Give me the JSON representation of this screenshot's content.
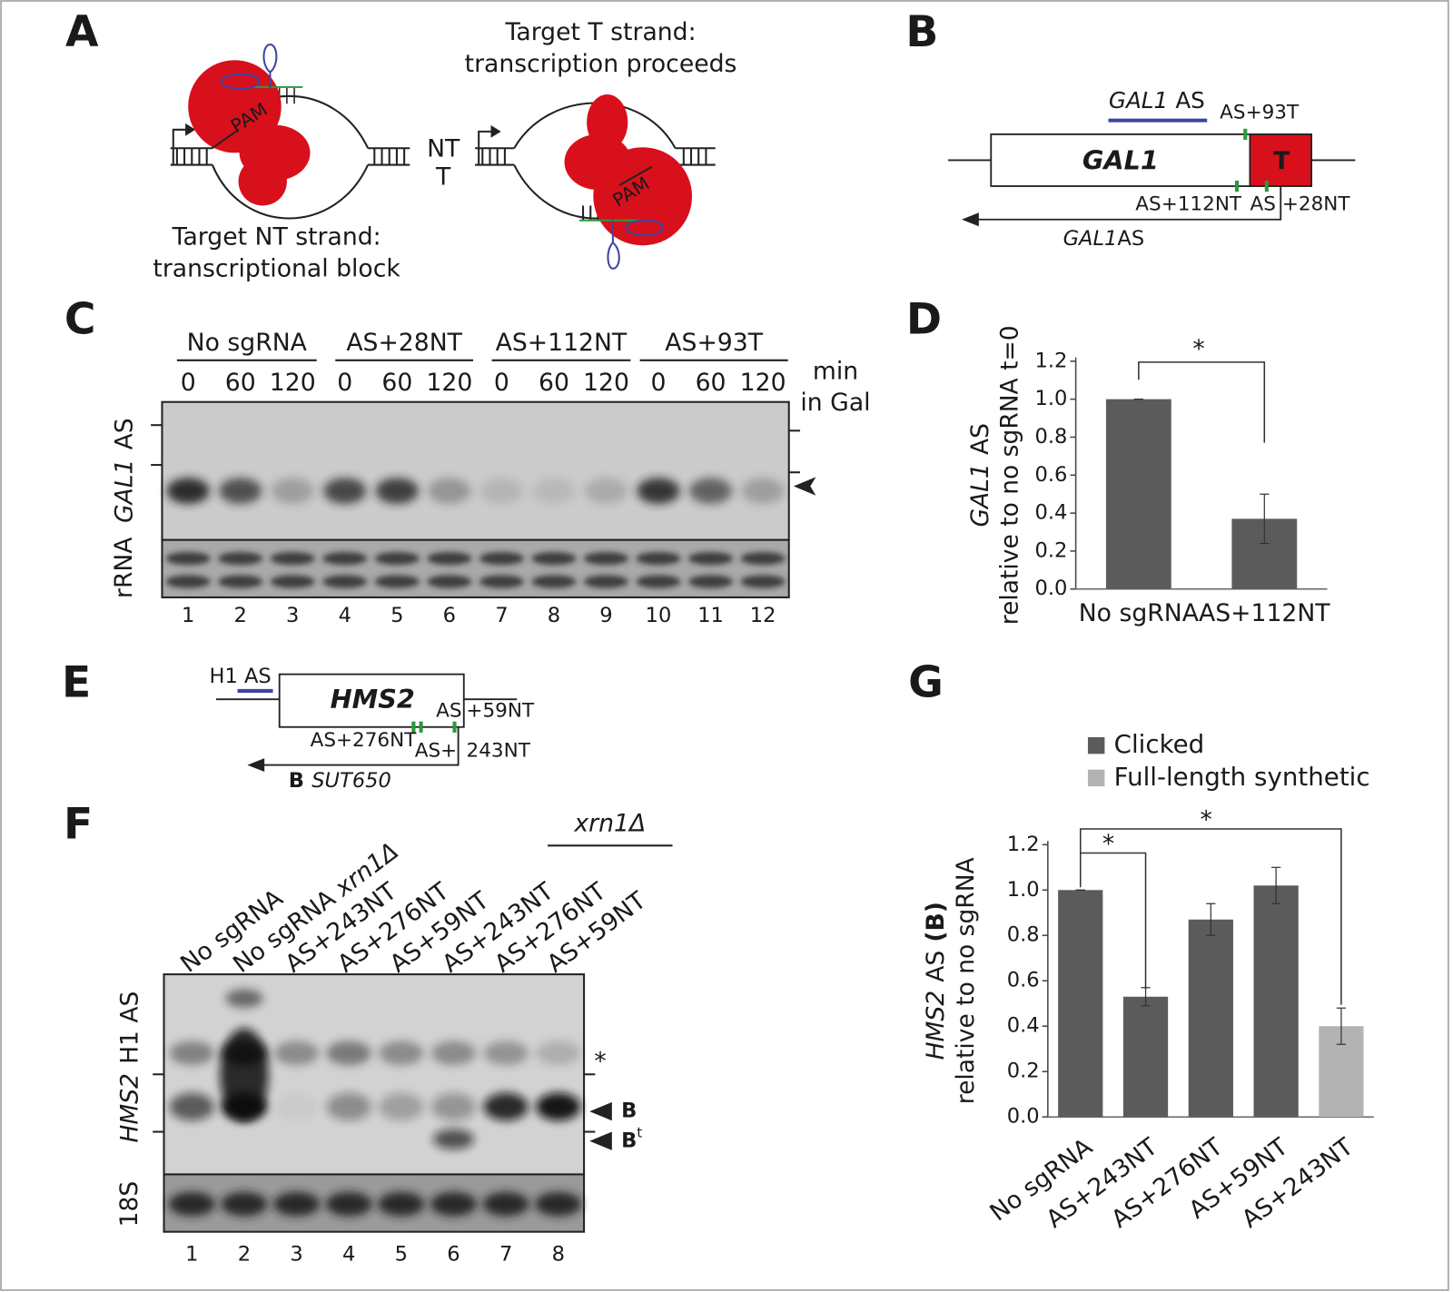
{
  "panels": {
    "A": {
      "label": "A",
      "heading": [
        "Target T strand:",
        "transcription proceeds"
      ],
      "pam": [
        "PAM",
        "PAM"
      ],
      "strands": [
        "NT",
        "T"
      ],
      "caption": [
        "Target NT strand:",
        "transcriptional block"
      ]
    },
    "B": {
      "label": "B",
      "probe": [
        "GAL1",
        "AS"
      ],
      "site_top": "AS+93T",
      "gene": "GAL1",
      "terminator": "T",
      "site_left": "AS+112NT",
      "site_right": [
        "AS",
        "+28NT"
      ],
      "transcript": [
        "GAL1",
        "AS"
      ]
    },
    "C": {
      "label": "C",
      "groups": [
        "No sgRNA",
        "AS+28NT",
        "AS+112NT",
        "AS+93T"
      ],
      "times": [
        0,
        60,
        120,
        0,
        60,
        120,
        0,
        60,
        120,
        0,
        60,
        120
      ],
      "time_unit": [
        "min",
        "in Gal"
      ],
      "probe": [
        "GAL1",
        "AS"
      ],
      "loading": "rRNA",
      "lanes": [
        1,
        2,
        3,
        4,
        5,
        6,
        7,
        8,
        9,
        10,
        11,
        12
      ]
    },
    "D": {
      "label": "D"
    },
    "E": {
      "label": "E",
      "probe": "H1 AS",
      "gene": "HMS2",
      "site_right": [
        "AS",
        "+59NT"
      ],
      "site_left": "AS+276NT",
      "site_mid": [
        "AS+",
        "243NT"
      ],
      "transcript": [
        "B",
        "SUT650"
      ]
    },
    "F": {
      "label": "F",
      "genotype": "xrn1Δ",
      "samples": [
        "No sgRNA",
        [
          "No sgRNA",
          "xrn1Δ"
        ],
        "AS+243NT",
        "AS+276NT",
        "AS+59NT",
        "AS+243NT",
        "AS+276NT",
        "AS+59NT"
      ],
      "probe": [
        "HMS2",
        "H1 AS"
      ],
      "loading": "18S",
      "bands": {
        "star": "*",
        "full": "B",
        "truncated": [
          "B",
          "t"
        ]
      },
      "lanes": [
        1,
        2,
        3,
        4,
        5,
        6,
        7,
        8
      ]
    },
    "G": {
      "label": "G"
    }
  },
  "chart_data": [
    {
      "type": "bar",
      "ylabel": [
        "GAL1",
        "AS"
      ],
      "ylabel2": "relative to no sgRNA t=0",
      "categories": [
        "No sgRNA",
        "AS+112NT"
      ],
      "values": [
        1.0,
        0.37
      ],
      "errors": [
        0,
        0.13
      ],
      "color": "#5b5b5b",
      "ylim": [
        0,
        1.2
      ],
      "yticks": [
        {
          "value": 0,
          "label": "0.0"
        },
        0.2,
        0.4,
        0.6,
        0.8,
        {
          "value": 1,
          "label": "1.0"
        },
        1.2
      ],
      "annotations": [
        "*"
      ]
    },
    {
      "type": "bar",
      "ylabel": [
        "HMS2",
        "AS",
        "(B)"
      ],
      "ylabel2": "relative to no sgRNA",
      "categories": [
        "No sgRNA",
        "AS+243NT",
        "AS+276NT",
        "AS+59NT",
        "AS+243NT"
      ],
      "series": [
        {
          "name": "Clicked",
          "color": "#5b5b5b",
          "values": [
            1.0,
            0.53,
            0.87,
            1.02,
            null
          ],
          "errors": [
            0,
            0.04,
            0.07,
            0.08,
            null
          ]
        },
        {
          "name": "Full-length synthetic",
          "color": "#b3b3b3",
          "values": [
            null,
            null,
            null,
            null,
            0.4
          ],
          "errors": [
            null,
            null,
            null,
            null,
            0.08
          ]
        }
      ],
      "ylim": [
        0,
        1.2
      ],
      "yticks": [
        {
          "value": 0,
          "label": "0.0"
        },
        0.2,
        0.4,
        0.6,
        0.8,
        {
          "value": 1,
          "label": "1.0"
        },
        1.2
      ],
      "legend": "top",
      "annotations": [
        "*",
        "*"
      ]
    }
  ]
}
